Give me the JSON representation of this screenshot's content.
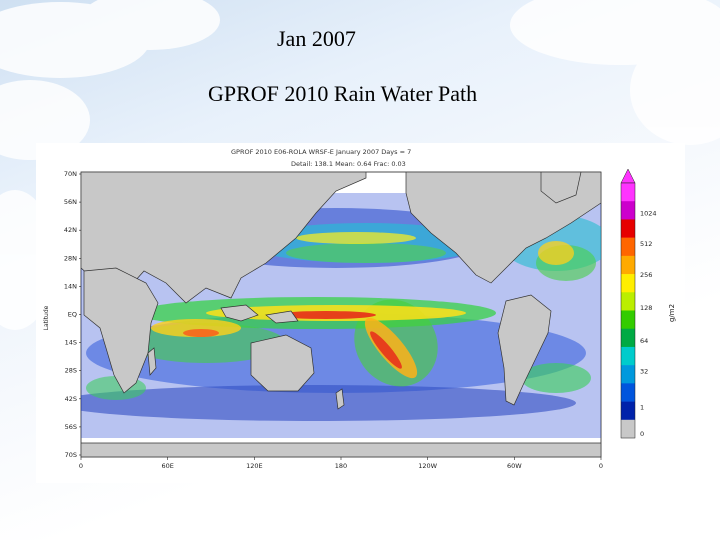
{
  "slide": {
    "title": "Jan 2007",
    "subtitle": "GPROF 2010 Rain Water Path"
  },
  "figure": {
    "header_line1": "GPROF 2010    E06-ROLA    WRSF-E    January 2007   Days = 7",
    "header_line2": "Detail: 138.1   Mean: 0.64   Frac: 0.03",
    "y_axis_label": "Latitude",
    "lat_labels": [
      "70N",
      "56N",
      "42N",
      "28N",
      "14N",
      "EQ",
      "14S",
      "28S",
      "42S",
      "56S",
      "70S"
    ],
    "lon_labels": [
      "0",
      "60E",
      "120E",
      "180",
      "120W",
      "60W",
      "0"
    ],
    "colorbar": {
      "labels": [
        "1024",
        "512",
        "256",
        "128",
        "64",
        "32",
        "1",
        "0"
      ],
      "unit": "g/m2",
      "colors": [
        "#ff33ff",
        "#cc00cc",
        "#e60000",
        "#ff6600",
        "#ffaa00",
        "#ffee00",
        "#bbee00",
        "#33cc00",
        "#00aa44",
        "#00cccc",
        "#0099dd",
        "#0055dd",
        "#0022aa",
        "#c8c8c8"
      ]
    }
  },
  "colors": {
    "land": "#c8c8c8",
    "ocean": "#ffffff",
    "coast": "#333333"
  }
}
